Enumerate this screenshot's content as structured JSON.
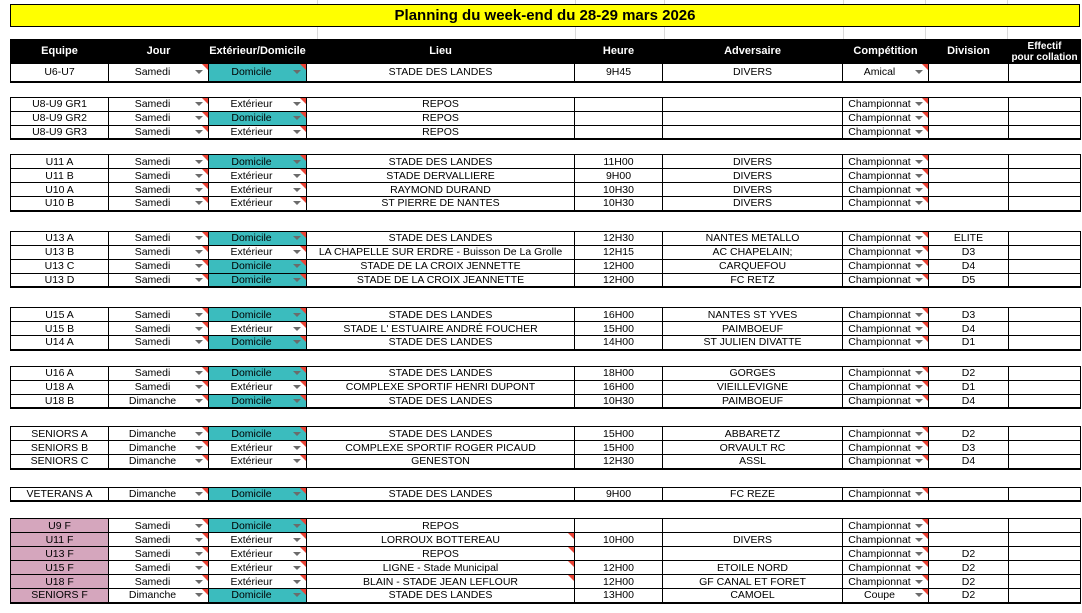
{
  "title": "Planning du week-end du 28-29 mars 2026",
  "columns": [
    "Equipe",
    "Jour",
    "Extérieur/Domicile",
    "Lieu",
    "Heure",
    "Adversaire",
    "Compétition",
    "Division",
    "Effectif\npour collation"
  ],
  "colors": {
    "title_bg": "#ffff00",
    "header_bg": "#000000",
    "header_text": "#ffffff",
    "home_cell_bg": "#3bbcbe",
    "feminine_team_bg": "#d5a6bd",
    "note_marker": "#ea4335"
  },
  "groups": [
    {
      "rows": [
        {
          "equipe": "U6-U7",
          "jour": "Samedi",
          "lieu_type": "Domicile",
          "lieu": "STADE DES LANDES",
          "heure": "9H45",
          "adversaire": "DIVERS",
          "competition": "Amical",
          "division": "",
          "effectif": ""
        }
      ]
    },
    {
      "rows": [
        {
          "equipe": "U8-U9 GR1",
          "jour": "Samedi",
          "lieu_type": "Extérieur",
          "lieu": "REPOS",
          "heure": "",
          "adversaire": "",
          "competition": "Championnat",
          "division": "",
          "effectif": ""
        },
        {
          "equipe": "U8-U9 GR2",
          "jour": "Samedi",
          "lieu_type": "Domicile",
          "lieu": "REPOS",
          "heure": "",
          "adversaire": "",
          "competition": "Championnat",
          "division": "",
          "effectif": ""
        },
        {
          "equipe": "U8-U9 GR3",
          "jour": "Samedi",
          "lieu_type": "Extérieur",
          "lieu": "REPOS",
          "heure": "",
          "adversaire": "",
          "competition": "Championnat",
          "division": "",
          "effectif": ""
        }
      ]
    },
    {
      "rows": [
        {
          "equipe": "U11 A",
          "jour": "Samedi",
          "lieu_type": "Domicile",
          "lieu": "STADE DES LANDES",
          "heure": "11H00",
          "adversaire": "DIVERS",
          "competition": "Championnat",
          "division": "",
          "effectif": ""
        },
        {
          "equipe": "U11 B",
          "jour": "Samedi",
          "lieu_type": "Extérieur",
          "lieu": "STADE DERVALLIERE",
          "heure": "9H00",
          "adversaire": "DIVERS",
          "competition": "Championnat",
          "division": "",
          "effectif": ""
        },
        {
          "equipe": "U10 A",
          "jour": "Samedi",
          "lieu_type": "Extérieur",
          "lieu": "RAYMOND DURAND",
          "heure": "10H30",
          "adversaire": "DIVERS",
          "competition": "Championnat",
          "division": "",
          "effectif": ""
        },
        {
          "equipe": "U10 B",
          "jour": "Samedi",
          "lieu_type": "Extérieur",
          "lieu": "ST PIERRE DE NANTES",
          "heure": "10H30",
          "adversaire": "DIVERS",
          "competition": "Championnat",
          "division": "",
          "effectif": ""
        }
      ]
    },
    {
      "rows": [
        {
          "equipe": "U13 A",
          "jour": "Samedi",
          "lieu_type": "Domicile",
          "lieu": "STADE DES LANDES",
          "heure": "12H30",
          "adversaire": "NANTES METALLO",
          "competition": "Championnat",
          "division": "ELITE",
          "effectif": ""
        },
        {
          "equipe": "U13 B",
          "jour": "Samedi",
          "lieu_type": "Extérieur",
          "lieu": "LA CHAPELLE SUR ERDRE - Buisson De La Grolle",
          "heure": "12H15",
          "adversaire": "AC CHAPELAIN;",
          "competition": "Championnat",
          "division": "D3",
          "effectif": ""
        },
        {
          "equipe": "U13 C",
          "jour": "Samedi",
          "lieu_type": "Domicile",
          "lieu": "STADE DE LA CROIX JENNETTE",
          "heure": "12H00",
          "adversaire": "CARQUEFOU",
          "competition": "Championnat",
          "division": "D4",
          "effectif": ""
        },
        {
          "equipe": "U13 D",
          "jour": "Samedi",
          "lieu_type": "Domicile",
          "lieu": "STADE DE LA CROIX JEANNETTE",
          "heure": "12H00",
          "adversaire": "FC RETZ",
          "competition": "Championnat",
          "division": "D5",
          "effectif": ""
        }
      ]
    },
    {
      "rows": [
        {
          "equipe": "U15 A",
          "jour": "Samedi",
          "lieu_type": "Domicile",
          "lieu": "STADE DES LANDES",
          "heure": "16H00",
          "adversaire": "NANTES ST YVES",
          "competition": "Championnat",
          "division": "D3",
          "effectif": ""
        },
        {
          "equipe": "U15 B",
          "jour": "Samedi",
          "lieu_type": "Extérieur",
          "lieu": "STADE L' ESTUAIRE ANDRÉ FOUCHER",
          "heure": "15H00",
          "adversaire": "PAIMBOEUF",
          "competition": "Championnat",
          "division": "D4",
          "effectif": ""
        },
        {
          "equipe": "U14 A",
          "jour": "Samedi",
          "lieu_type": "Domicile",
          "lieu": "STADE DES LANDES",
          "heure": "14H00",
          "adversaire": "ST JULIEN DIVATTE",
          "competition": "Championnat",
          "division": "D1",
          "effectif": ""
        }
      ]
    },
    {
      "rows": [
        {
          "equipe": "U16 A",
          "jour": "Samedi",
          "lieu_type": "Domicile",
          "lieu": "STADE DES LANDES",
          "heure": "18H00",
          "adversaire": "GORGES",
          "competition": "Championnat",
          "division": "D2",
          "effectif": ""
        },
        {
          "equipe": "U18 A",
          "jour": "Samedi",
          "lieu_type": "Extérieur",
          "lieu": "COMPLEXE SPORTIF HENRI DUPONT",
          "heure": "16H00",
          "adversaire": "VIEILLEVIGNE",
          "competition": "Championnat",
          "division": "D1",
          "effectif": ""
        },
        {
          "equipe": "U18 B",
          "jour": "Dimanche",
          "lieu_type": "Domicile",
          "lieu": "STADE DES LANDES",
          "heure": "10H30",
          "adversaire": "PAIMBOEUF",
          "competition": "Championnat",
          "division": "D4",
          "effectif": ""
        }
      ]
    },
    {
      "rows": [
        {
          "equipe": "SENIORS A",
          "jour": "Dimanche",
          "lieu_type": "Domicile",
          "lieu": "STADE DES LANDES",
          "heure": "15H00",
          "adversaire": "ABBARETZ",
          "competition": "Championnat",
          "division": "D2",
          "effectif": ""
        },
        {
          "equipe": "SENIORS B",
          "jour": "Dimanche",
          "lieu_type": "Extérieur",
          "lieu": "COMPLEXE SPORTIF ROGER PICAUD",
          "heure": "15H00",
          "adversaire": "ORVAULT RC",
          "competition": "Championnat",
          "division": "D3",
          "effectif": ""
        },
        {
          "equipe": "SENIORS C",
          "jour": "Dimanche",
          "lieu_type": "Extérieur",
          "lieu": "GENESTON",
          "heure": "12H30",
          "adversaire": "ASSL",
          "competition": "Championnat",
          "division": "D4",
          "effectif": ""
        }
      ]
    },
    {
      "rows": [
        {
          "equipe": "VETERANS A",
          "jour": "Dimanche",
          "lieu_type": "Domicile",
          "lieu": "STADE DES LANDES",
          "heure": "9H00",
          "adversaire": "FC REZE",
          "competition": "Championnat",
          "division": "",
          "effectif": ""
        }
      ]
    },
    {
      "rows": [
        {
          "equipe": "U9 F",
          "jour": "Samedi",
          "lieu_type": "Domicile",
          "lieu": "REPOS",
          "heure": "",
          "adversaire": "",
          "competition": "Championnat",
          "division": "",
          "effectif": "",
          "feminine": true
        },
        {
          "equipe": "U11 F",
          "jour": "Samedi",
          "lieu_type": "Extérieur",
          "lieu": "LORROUX BOTTEREAU",
          "heure": "10H00",
          "adversaire": "DIVERS",
          "competition": "Championnat",
          "division": "",
          "effectif": "",
          "feminine": true,
          "lieu_note": true
        },
        {
          "equipe": "U13 F",
          "jour": "Samedi",
          "lieu_type": "Extérieur",
          "lieu": "REPOS",
          "heure": "",
          "adversaire": "",
          "competition": "Championnat",
          "division": "D2",
          "effectif": "",
          "feminine": true,
          "lieu_note": true
        },
        {
          "equipe": "U15 F",
          "jour": "Samedi",
          "lieu_type": "Extérieur",
          "lieu": "LIGNE - Stade Municipal",
          "heure": "12H00",
          "adversaire": "ETOILE NORD",
          "competition": "Championnat",
          "division": "D2",
          "effectif": "",
          "feminine": true,
          "lieu_note": true
        },
        {
          "equipe": "U18 F",
          "jour": "Samedi",
          "lieu_type": "Extérieur",
          "lieu": "BLAIN - STADE JEAN LEFLOUR",
          "heure": "12H00",
          "adversaire": "GF CANAL ET FORET",
          "competition": "Championnat",
          "division": "D2",
          "effectif": "",
          "feminine": true,
          "lieu_note": true
        },
        {
          "equipe": "SENIORS F",
          "jour": "Dimanche",
          "lieu_type": "Domicile",
          "lieu": "STADE DES LANDES",
          "heure": "13H00",
          "adversaire": "CAMOEL",
          "competition": "Coupe",
          "division": "D2",
          "effectif": "",
          "feminine": true
        }
      ]
    }
  ]
}
